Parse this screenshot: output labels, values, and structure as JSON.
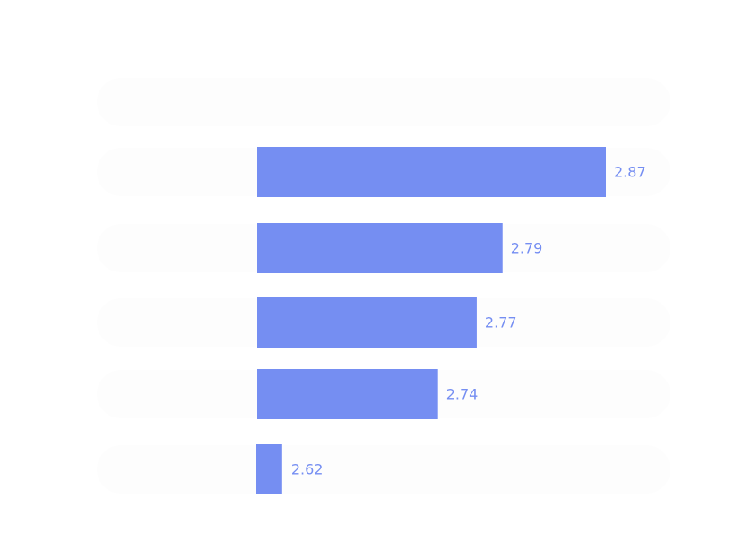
{
  "chart_data": {
    "type": "bar",
    "orientation": "horizontal",
    "title": "",
    "xlabel": "",
    "ylabel": "",
    "grid": false,
    "xlim": [
      2.6,
      2.9
    ],
    "categories": [
      "",
      "",
      "",
      "",
      "",
      ""
    ],
    "values": [
      null,
      2.87,
      2.79,
      2.77,
      2.74,
      2.62
    ],
    "value_labels": [
      "",
      "2.87",
      "2.79",
      "2.77",
      "2.74",
      "2.62"
    ],
    "colors": {
      "bar": "#758ef2",
      "label": "#758ef2",
      "track": "#fdfdfd"
    }
  }
}
